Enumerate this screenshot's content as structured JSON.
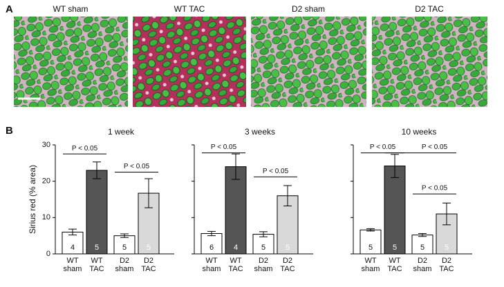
{
  "panel_a": {
    "label": "A",
    "images": [
      {
        "label": "WT sham"
      },
      {
        "label": "WT TAC"
      },
      {
        "label": "D2 sham"
      },
      {
        "label": "D2 TAC"
      }
    ]
  },
  "panel_b": {
    "label": "B",
    "y_label": "Sirius red (% area)"
  },
  "chart_data": [
    {
      "type": "bar",
      "title": "1 week",
      "categories": [
        "WT sham",
        "WT TAC",
        "D2 sham",
        "D2 TAC"
      ],
      "series": [
        {
          "values": [
            6,
            23,
            5,
            16.7
          ],
          "errors": [
            0.8,
            2.3,
            0.5,
            4
          ],
          "colors": [
            "#ffffff",
            "#555555",
            "#ffffff",
            "#d9d9d9"
          ],
          "n": [
            4,
            5,
            5,
            5
          ]
        }
      ],
      "ylim": [
        0,
        30
      ],
      "yticks": [
        0,
        10,
        20,
        30
      ],
      "annotations": [
        "P < 0.05",
        "P < 0.05"
      ]
    },
    {
      "type": "bar",
      "title": "3 weeks",
      "categories": [
        "WT sham",
        "WT TAC",
        "D2 sham",
        "D2 TAC"
      ],
      "series": [
        {
          "values": [
            5.6,
            24,
            5.4,
            16
          ],
          "errors": [
            0.6,
            3.5,
            0.7,
            2.8
          ],
          "colors": [
            "#ffffff",
            "#555555",
            "#ffffff",
            "#d9d9d9"
          ],
          "n": [
            6,
            4,
            5,
            5
          ]
        }
      ],
      "ylim": [
        0,
        30
      ],
      "yticks": [
        0,
        10,
        20,
        30
      ],
      "annotations": [
        "P < 0.05",
        "P < 0.05"
      ]
    },
    {
      "type": "bar",
      "title": "10 weeks",
      "categories": [
        "WT sham",
        "WT TAC",
        "D2 sham",
        "D2 TAC"
      ],
      "series": [
        {
          "values": [
            6.6,
            24.2,
            5.2,
            11
          ],
          "errors": [
            0.3,
            3.2,
            0.4,
            3
          ],
          "colors": [
            "#ffffff",
            "#555555",
            "#ffffff",
            "#d9d9d9"
          ],
          "n": [
            5,
            5,
            5,
            5
          ]
        }
      ],
      "ylim": [
        0,
        30
      ],
      "yticks": [
        0,
        10,
        20,
        30
      ],
      "annotations": [
        "P < 0.05",
        "P < 0.05",
        "P < 0.05"
      ]
    }
  ]
}
